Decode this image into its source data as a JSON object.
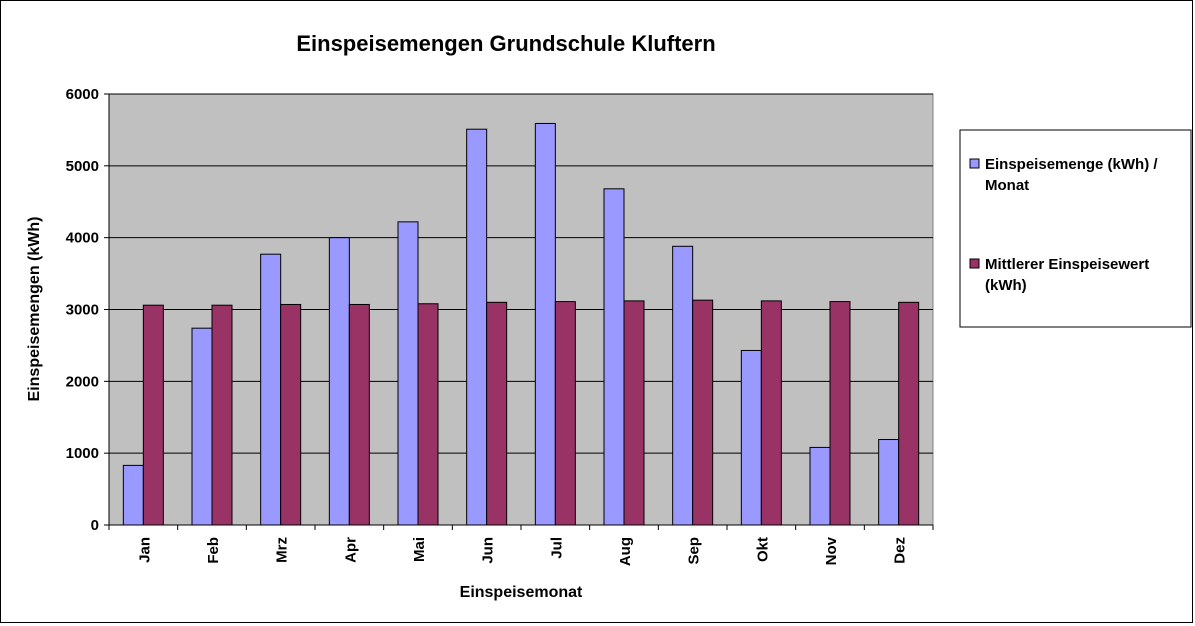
{
  "chart_data": {
    "type": "bar",
    "title": "Einspeisemengen Grundschule Kluftern",
    "xlabel": "Einspeisemonat",
    "ylabel": "Einspeisemengen (kWh)",
    "ylim": [
      0,
      6000
    ],
    "yticks": [
      0,
      1000,
      2000,
      3000,
      4000,
      5000,
      6000
    ],
    "grid": true,
    "legend_position": "right",
    "categories": [
      "Jan",
      "Feb",
      "Mrz",
      "Apr",
      "Mai",
      "Jun",
      "Jul",
      "Aug",
      "Sep",
      "Okt",
      "Nov",
      "Dez"
    ],
    "series": [
      {
        "name": "Einspeisemenge (kWh) / Monat",
        "legend_lines": [
          "Einspeisemenge (kWh) /",
          "Monat"
        ],
        "color": "#9999ff",
        "values": [
          830,
          2740,
          3770,
          4000,
          4220,
          5510,
          5590,
          4680,
          3880,
          2430,
          1080,
          1190
        ]
      },
      {
        "name": "Mittlerer Einspeisewert (kWh)",
        "legend_lines": [
          "Mittlerer Einspeisewert",
          "(kWh)"
        ],
        "color": "#993366",
        "values": [
          3060,
          3060,
          3070,
          3070,
          3080,
          3100,
          3110,
          3120,
          3130,
          3120,
          3110,
          3100
        ]
      }
    ],
    "plot_background": "#c0c0c0"
  }
}
